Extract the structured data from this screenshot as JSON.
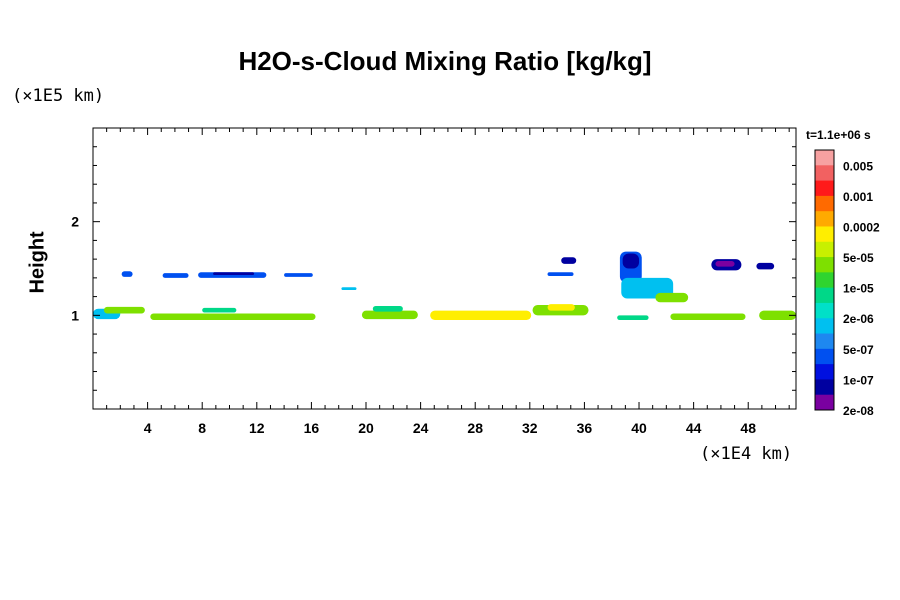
{
  "chart_data": {
    "type": "heatmap",
    "title": "H2O-s-Cloud Mixing Ratio [kg/kg]",
    "ylabel": "Height",
    "xlabel": "",
    "x_unit_label": "(×1E4 km)",
    "y_unit_label": "(×1E5 km)",
    "time_label": "t=1.1e+06 s",
    "xlim": [
      0,
      51.5
    ],
    "ylim": [
      0,
      3
    ],
    "x_ticks": [
      4,
      8,
      12,
      16,
      20,
      24,
      28,
      32,
      36,
      40,
      44,
      48
    ],
    "y_ticks": [
      1,
      2
    ],
    "colorbar": {
      "labels": [
        "0.005",
        "0.001",
        "0.0002",
        "5e-05",
        "1e-05",
        "2e-06",
        "5e-07",
        "1e-07",
        "2e-08"
      ],
      "colors": [
        "#f7a1a1",
        "#f26161",
        "#ff1a1a",
        "#ff6a00",
        "#ffaa00",
        "#ffee00",
        "#c8f000",
        "#7ee000",
        "#2fd42f",
        "#00d888",
        "#00e0c8",
        "#00c0f0",
        "#1e88f0",
        "#0050f0",
        "#0010e0",
        "#0000a0",
        "#7a00a0"
      ]
    },
    "cloud_regions": [
      {
        "x0": 0,
        "x1": 2,
        "y0": 0.96,
        "y1": 1.07,
        "level": "2e-06"
      },
      {
        "x0": 0.8,
        "x1": 3.8,
        "y0": 1.02,
        "y1": 1.09,
        "level": "5e-05"
      },
      {
        "x0": 4.2,
        "x1": 16.3,
        "y0": 0.95,
        "y1": 1.02,
        "level": "5e-05"
      },
      {
        "x0": 8,
        "x1": 10.5,
        "y0": 1.03,
        "y1": 1.08,
        "level": "1e-05"
      },
      {
        "x0": 19.7,
        "x1": 23.8,
        "y0": 0.96,
        "y1": 1.05,
        "level": "5e-05"
      },
      {
        "x0": 20.5,
        "x1": 22.7,
        "y0": 1.04,
        "y1": 1.1,
        "level": "1e-05"
      },
      {
        "x0": 24.7,
        "x1": 32.1,
        "y0": 0.95,
        "y1": 1.05,
        "level": "0.0002"
      },
      {
        "x0": 32.2,
        "x1": 36.3,
        "y0": 1.0,
        "y1": 1.11,
        "level": "5e-05"
      },
      {
        "x0": 33.3,
        "x1": 35.3,
        "y0": 1.05,
        "y1": 1.12,
        "level": "0.0002"
      },
      {
        "x0": 38.4,
        "x1": 40.7,
        "y0": 0.95,
        "y1": 1.0,
        "level": "1e-05"
      },
      {
        "x0": 42.3,
        "x1": 47.8,
        "y0": 0.95,
        "y1": 1.02,
        "level": "5e-05"
      },
      {
        "x0": 48.8,
        "x1": 51.5,
        "y0": 0.95,
        "y1": 1.05,
        "level": "5e-05"
      },
      {
        "x0": 2.1,
        "x1": 2.9,
        "y0": 1.41,
        "y1": 1.47,
        "level": "5e-07"
      },
      {
        "x0": 5.1,
        "x1": 7,
        "y0": 1.4,
        "y1": 1.45,
        "level": "5e-07"
      },
      {
        "x0": 7.7,
        "x1": 12.7,
        "y0": 1.4,
        "y1": 1.46,
        "level": "5e-07"
      },
      {
        "x0": 8.8,
        "x1": 11.8,
        "y0": 1.43,
        "y1": 1.46,
        "level": "1e-07"
      },
      {
        "x0": 14,
        "x1": 16.1,
        "y0": 1.41,
        "y1": 1.45,
        "level": "5e-07"
      },
      {
        "x0": 18.2,
        "x1": 19.3,
        "y0": 1.27,
        "y1": 1.3,
        "level": "2e-06"
      },
      {
        "x0": 33.3,
        "x1": 35.2,
        "y0": 1.42,
        "y1": 1.46,
        "level": "5e-07"
      },
      {
        "x0": 34.3,
        "x1": 35.4,
        "y0": 1.55,
        "y1": 1.62,
        "level": "1e-07"
      },
      {
        "x0": 38.6,
        "x1": 40.2,
        "y0": 1.35,
        "y1": 1.68,
        "level": "5e-07"
      },
      {
        "x0": 38.8,
        "x1": 40,
        "y0": 1.5,
        "y1": 1.66,
        "level": "1e-07"
      },
      {
        "x0": 38.7,
        "x1": 42.5,
        "y0": 1.18,
        "y1": 1.4,
        "level": "2e-06"
      },
      {
        "x0": 41.2,
        "x1": 43.6,
        "y0": 1.14,
        "y1": 1.24,
        "level": "5e-05"
      },
      {
        "x0": 45.3,
        "x1": 47.5,
        "y0": 1.48,
        "y1": 1.6,
        "level": "1e-07"
      },
      {
        "x0": 45.6,
        "x1": 47,
        "y0": 1.52,
        "y1": 1.58,
        "level": "2e-08"
      },
      {
        "x0": 48.6,
        "x1": 49.9,
        "y0": 1.49,
        "y1": 1.56,
        "level": "1e-07"
      }
    ]
  }
}
